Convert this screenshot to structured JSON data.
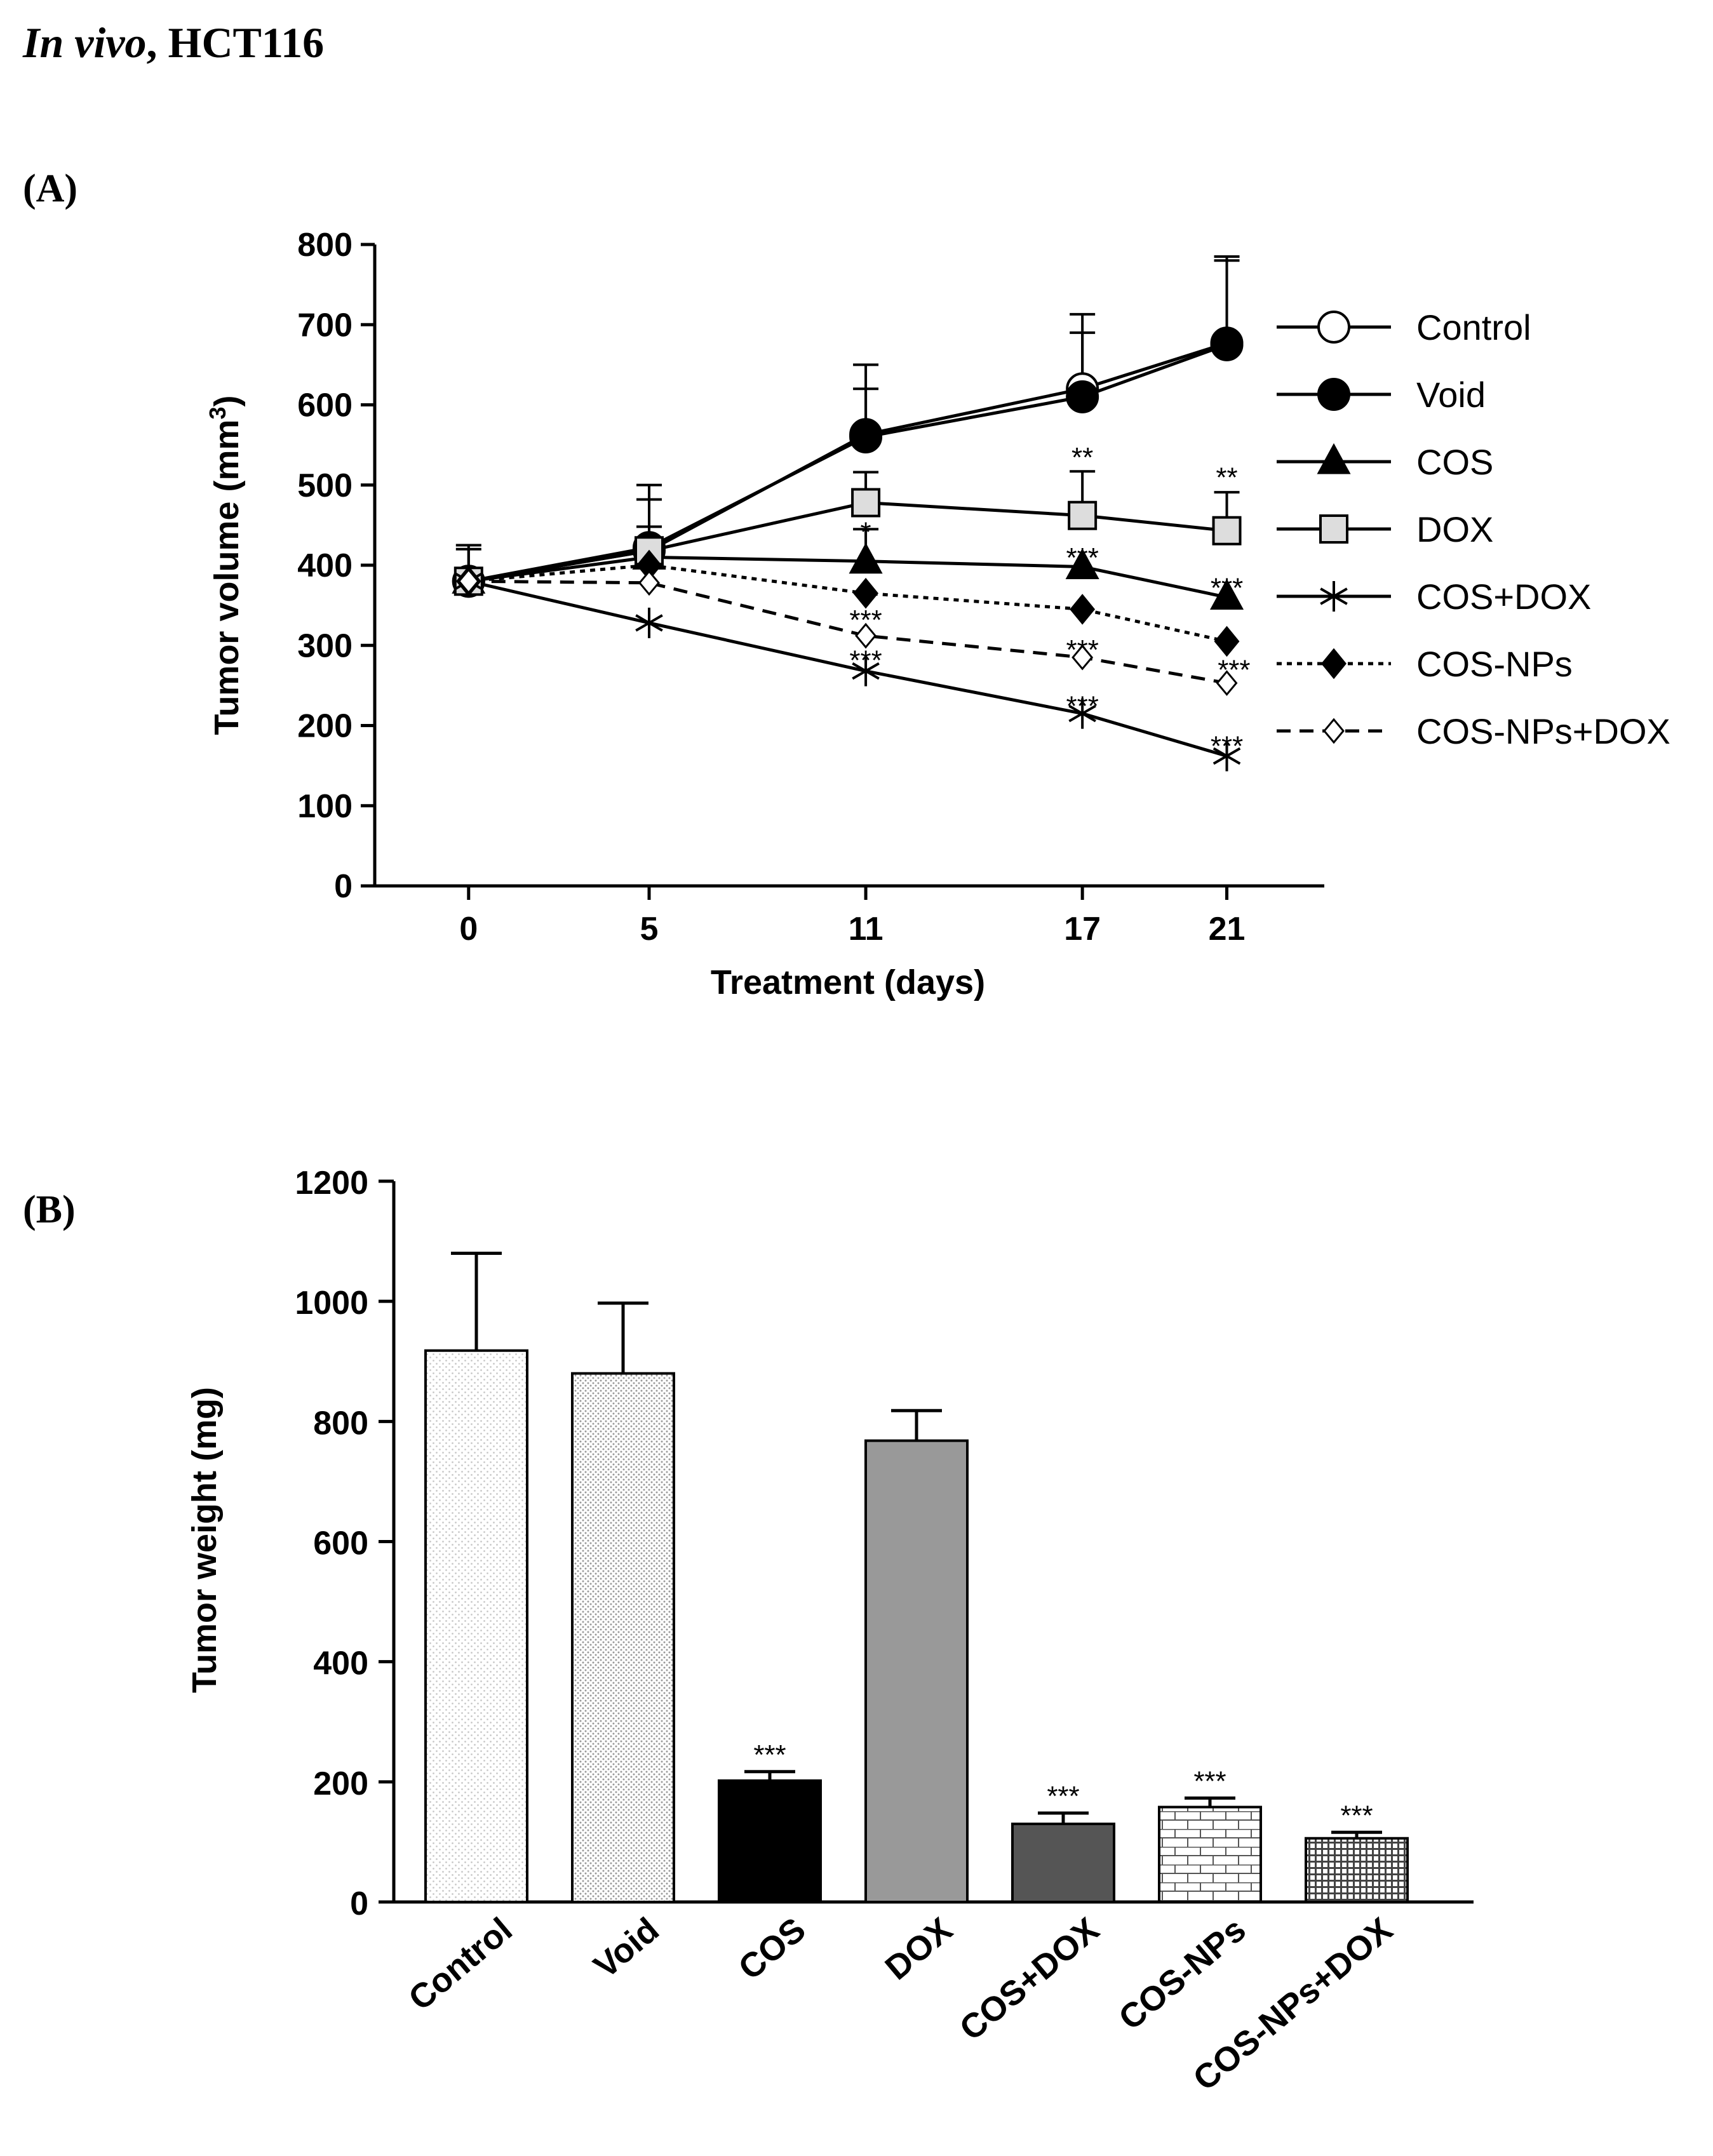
{
  "page": {
    "title_italic": "In vivo",
    "title_rest": ", HCT116"
  },
  "panels": {
    "a_label": "(A)",
    "b_label": "(B)"
  },
  "chart_data": [
    {
      "id": "A",
      "type": "line",
      "title": "",
      "xlabel": "Treatment (days)",
      "ylabel": "Tumor volume (mm³)",
      "ylabel_main": "Tumor volume (mm",
      "ylabel_sup": "3",
      "ylabel_close": ")",
      "x": [
        0,
        5,
        11,
        17,
        21
      ],
      "x_tick_labels": [
        "0",
        "5",
        "11",
        "17",
        "21"
      ],
      "y_ticks": [
        0,
        100,
        200,
        300,
        400,
        500,
        600,
        700,
        800
      ],
      "ylim": [
        0,
        800
      ],
      "legend_position": "right",
      "series": [
        {
          "name": "Control",
          "marker": "circle-open",
          "line": "solid",
          "values": [
            380,
            418,
            563,
            620,
            677
          ],
          "errors": [
            45,
            82,
            87,
            93,
            108
          ]
        },
        {
          "name": "Void",
          "marker": "circle-filled",
          "line": "solid",
          "values": [
            380,
            422,
            560,
            610,
            675
          ],
          "errors": [
            40,
            60,
            60,
            80,
            105
          ]
        },
        {
          "name": "COS",
          "marker": "triangle-filled",
          "line": "solid",
          "values": [
            380,
            410,
            405,
            398,
            360
          ],
          "errors": [
            0,
            0,
            40,
            0,
            0
          ]
        },
        {
          "name": "DOX",
          "marker": "square-open",
          "line": "solid",
          "values": [
            380,
            418,
            478,
            462,
            443
          ],
          "errors": [
            0,
            30,
            38,
            55,
            48
          ]
        },
        {
          "name": "COS+DOX",
          "marker": "star",
          "line": "solid",
          "values": [
            380,
            328,
            268,
            215,
            162
          ],
          "errors": [
            0,
            0,
            0,
            0,
            0
          ]
        },
        {
          "name": "COS-NPs",
          "marker": "diamond-filled",
          "line": "dotted",
          "values": [
            380,
            400,
            365,
            345,
            305
          ],
          "errors": [
            0,
            0,
            0,
            0,
            0
          ]
        },
        {
          "name": "COS-NPs+DOX",
          "marker": "diamond-open",
          "line": "dashed",
          "values": [
            380,
            378,
            312,
            285,
            253
          ],
          "errors": [
            0,
            0,
            0,
            0,
            0
          ]
        }
      ],
      "annotations": [
        {
          "text": "*",
          "x": 11,
          "y": 452
        },
        {
          "text": "***",
          "x": 11,
          "y": 342
        },
        {
          "text": "***",
          "x": 11,
          "y": 292
        },
        {
          "text": "**",
          "x": 17,
          "y": 545
        },
        {
          "text": "***",
          "x": 17,
          "y": 420
        },
        {
          "text": "***",
          "x": 17,
          "y": 305
        },
        {
          "text": "***",
          "x": 17,
          "y": 235
        },
        {
          "text": "**",
          "x": 21,
          "y": 520
        },
        {
          "text": "***",
          "x": 21,
          "y": 382
        },
        {
          "text": "***",
          "x": 21.2,
          "y": 280
        },
        {
          "text": "***",
          "x": 21,
          "y": 185
        }
      ]
    },
    {
      "id": "B",
      "type": "bar",
      "title": "",
      "xlabel": "",
      "ylabel": "Tumor weight (mg)",
      "categories": [
        "Control",
        "Void",
        "COS",
        "DOX",
        "COS+DOX",
        "COS-NPs",
        "COS-NPs+DOX"
      ],
      "values": [
        918,
        880,
        202,
        768,
        130,
        158,
        106
      ],
      "errors": [
        162,
        117,
        15,
        50,
        18,
        15,
        10
      ],
      "significance": [
        "",
        "",
        "***",
        "",
        "***",
        "***",
        "***"
      ],
      "y_ticks": [
        0,
        200,
        400,
        600,
        800,
        1000,
        1200
      ],
      "ylim": [
        0,
        1200
      ],
      "fills": [
        "dots-light",
        "dots-dense",
        "#000000",
        "#999999",
        "#555555",
        "bricks",
        "grid"
      ]
    }
  ]
}
